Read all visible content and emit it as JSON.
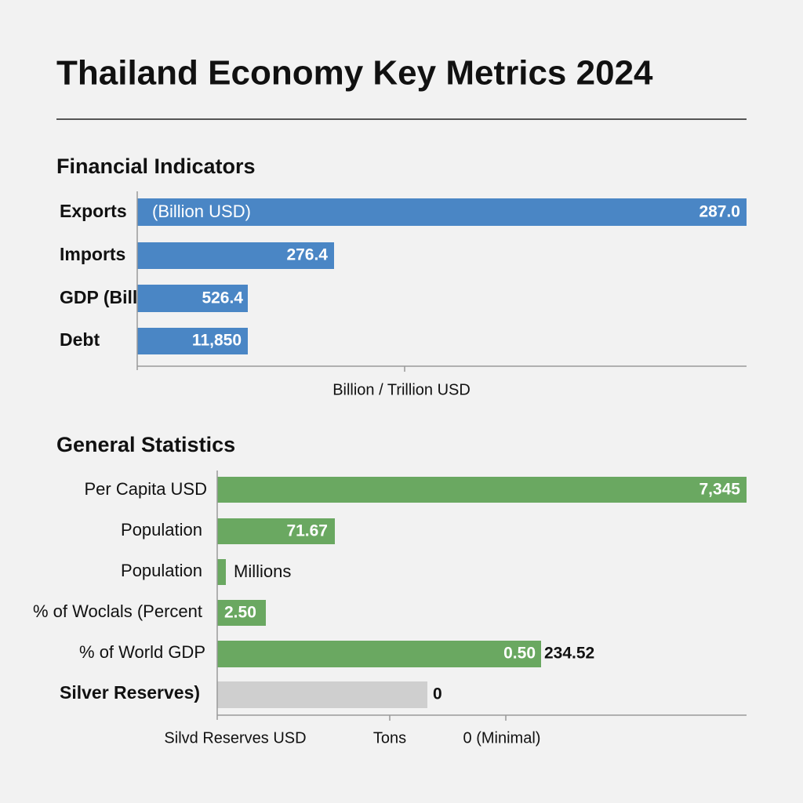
{
  "title": "Thailand Economy Key Metrics 2024",
  "financial": {
    "heading": "Financial Indicators",
    "rows": [
      {
        "label": "Exports",
        "note": "(Billion USD)",
        "value": "287.0"
      },
      {
        "label": "Imports",
        "value": "276.4"
      },
      {
        "label": "GDP (Billion)",
        "value": "526.4"
      },
      {
        "label": "Debt",
        "value": "11,850"
      }
    ],
    "axis_label": "Billion / Trillion USD"
  },
  "general": {
    "heading": "General Statistics",
    "rows": [
      {
        "label": "Per Capita USD",
        "value": "7,345"
      },
      {
        "label": "Population",
        "value": "71.67"
      },
      {
        "label": "Population",
        "note": "Millions"
      },
      {
        "label": "% of Woclals (Percent",
        "value": "2.50"
      },
      {
        "label": "% of World GDP",
        "value": "0.50",
        "note": "234.52"
      },
      {
        "label": "Silver Reserves)",
        "note": "0"
      }
    ],
    "axis_labels": [
      "Silvd Reserves USD",
      "Tons",
      "0 (Minimal)"
    ]
  }
}
